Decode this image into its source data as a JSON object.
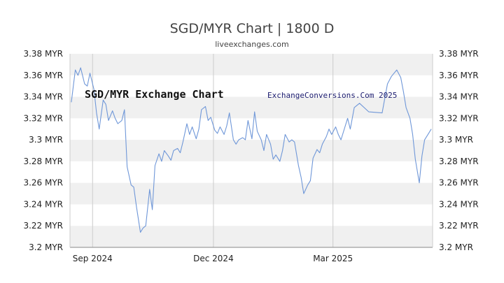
{
  "header": {
    "title": "SGD/MYR Chart | 1800 D",
    "subtitle": "liveexchanges.com"
  },
  "overlay": {
    "inner_title": "SGD/MYR Exchange Chart",
    "watermark": "ExchangeConversions.Com 2025"
  },
  "colors": {
    "line": "#6f97d8",
    "band": "#f0f0f0",
    "grid": "#cccccc",
    "axis": "#888888"
  },
  "chart_data": {
    "type": "line",
    "title": "SGD/MYR Chart | 1800 D",
    "subtitle": "liveexchanges.com",
    "xlabel": "",
    "ylabel": "",
    "y_ticks": [
      "3.2 MYR",
      "3.22 MYR",
      "3.24 MYR",
      "3.26 MYR",
      "3.28 MYR",
      "3.3 MYR",
      "3.32 MYR",
      "3.34 MYR",
      "3.36 MYR",
      "3.38 MYR"
    ],
    "y_tick_values": [
      3.2,
      3.22,
      3.24,
      3.26,
      3.28,
      3.3,
      3.32,
      3.34,
      3.36,
      3.38
    ],
    "ylim": [
      3.2,
      3.38
    ],
    "x_ticks": [
      {
        "label": "Sep 2024",
        "date": "2024-09-01"
      },
      {
        "label": "Dec 2024",
        "date": "2024-12-01"
      },
      {
        "label": "Mar 2025",
        "date": "2025-03-01"
      }
    ],
    "xlim": [
      "2024-08-15",
      "2025-05-15"
    ],
    "grid": true,
    "legend": "none",
    "y_axis_labels_both_sides": true,
    "x": [
      "2024-08-16",
      "2024-08-19",
      "2024-08-21",
      "2024-08-23",
      "2024-08-26",
      "2024-08-28",
      "2024-08-30",
      "2024-09-02",
      "2024-09-04",
      "2024-09-06",
      "2024-09-09",
      "2024-09-11",
      "2024-09-13",
      "2024-09-16",
      "2024-09-18",
      "2024-09-20",
      "2024-09-23",
      "2024-09-25",
      "2024-09-27",
      "2024-09-30",
      "2024-10-02",
      "2024-10-04",
      "2024-10-07",
      "2024-10-09",
      "2024-10-11",
      "2024-10-14",
      "2024-10-16",
      "2024-10-18",
      "2024-10-21",
      "2024-10-23",
      "2024-10-25",
      "2024-10-28",
      "2024-10-30",
      "2024-11-01",
      "2024-11-04",
      "2024-11-06",
      "2024-11-08",
      "2024-11-11",
      "2024-11-13",
      "2024-11-15",
      "2024-11-18",
      "2024-11-20",
      "2024-11-22",
      "2024-11-25",
      "2024-11-27",
      "2024-11-29",
      "2024-12-02",
      "2024-12-04",
      "2024-12-06",
      "2024-12-09",
      "2024-12-11",
      "2024-12-13",
      "2024-12-16",
      "2024-12-18",
      "2024-12-20",
      "2024-12-23",
      "2024-12-25",
      "2024-12-27",
      "2024-12-30",
      "2025-01-01",
      "2025-01-03",
      "2025-01-06",
      "2025-01-08",
      "2025-01-10",
      "2025-01-13",
      "2025-01-15",
      "2025-01-17",
      "2025-01-20",
      "2025-01-22",
      "2025-01-24",
      "2025-01-27",
      "2025-01-29",
      "2025-01-31",
      "2025-02-03",
      "2025-02-05",
      "2025-02-07",
      "2025-02-10",
      "2025-02-12",
      "2025-02-14",
      "2025-02-17",
      "2025-02-19",
      "2025-02-21",
      "2025-02-24",
      "2025-02-26",
      "2025-02-28",
      "2025-03-03",
      "2025-03-05",
      "2025-03-07",
      "2025-03-10",
      "2025-03-12",
      "2025-03-14",
      "2025-03-17",
      "2025-03-21",
      "2025-03-28",
      "2025-04-07",
      "2025-04-11",
      "2025-04-14",
      "2025-04-16",
      "2025-04-18",
      "2025-04-21",
      "2025-04-23",
      "2025-04-25",
      "2025-04-28",
      "2025-04-30",
      "2025-05-02",
      "2025-05-05",
      "2025-05-07",
      "2025-05-09",
      "2025-05-12",
      "2025-05-14"
    ],
    "series": [
      {
        "values": [
          3.335,
          3.365,
          3.36,
          3.367,
          3.352,
          3.35,
          3.362,
          3.347,
          3.325,
          3.31,
          3.337,
          3.333,
          3.318,
          3.327,
          3.32,
          3.315,
          3.318,
          3.328,
          3.275,
          3.258,
          3.256,
          3.238,
          3.214,
          3.218,
          3.22,
          3.254,
          3.235,
          3.276,
          3.287,
          3.28,
          3.29,
          3.285,
          3.281,
          3.29,
          3.292,
          3.288,
          3.298,
          3.315,
          3.305,
          3.312,
          3.301,
          3.31,
          3.328,
          3.331,
          3.318,
          3.321,
          3.309,
          3.306,
          3.312,
          3.305,
          3.313,
          3.325,
          3.3,
          3.296,
          3.3,
          3.302,
          3.3,
          3.318,
          3.301,
          3.326,
          3.308,
          3.3,
          3.29,
          3.305,
          3.296,
          3.282,
          3.286,
          3.28,
          3.29,
          3.305,
          3.298,
          3.3,
          3.298,
          3.276,
          3.265,
          3.25,
          3.258,
          3.262,
          3.283,
          3.291,
          3.288,
          3.296,
          3.303,
          3.31,
          3.305,
          3.312,
          3.305,
          3.3,
          3.312,
          3.32,
          3.31,
          3.33,
          3.334,
          3.326,
          3.325,
          3.352,
          3.359,
          3.362,
          3.365,
          3.358,
          3.345,
          3.33,
          3.32,
          3.305,
          3.282,
          3.26,
          3.285,
          3.3,
          3.306,
          3.31
        ]
      }
    ]
  }
}
